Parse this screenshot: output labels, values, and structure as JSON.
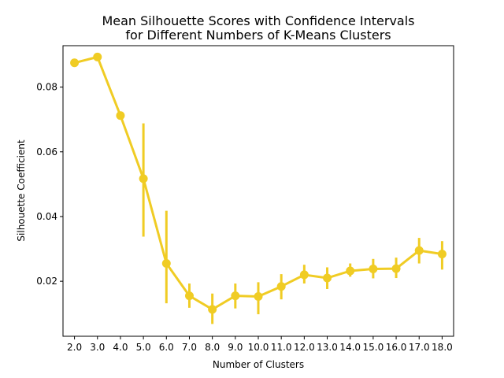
{
  "chart_data": {
    "type": "line",
    "title_line1": "Mean Silhouette Scores with Confidence Intervals",
    "title_line2": "for Different Numbers of K-Means Clusters",
    "xlabel": "Number of Clusters",
    "ylabel": "Silhouette Coefficient",
    "categories": [
      "2.0",
      "3.0",
      "4.0",
      "5.0",
      "6.0",
      "7.0",
      "8.0",
      "9.0",
      "10.0",
      "11.0",
      "12.0",
      "13.0",
      "14.0",
      "15.0",
      "16.0",
      "17.0",
      "18.0"
    ],
    "values": [
      0.0875,
      0.0893,
      0.0712,
      0.0517,
      0.0255,
      0.0155,
      0.0113,
      0.0155,
      0.0153,
      0.0184,
      0.022,
      0.021,
      0.0232,
      0.0238,
      0.0239,
      0.0295,
      0.0284
    ],
    "ci_low": [
      0.0875,
      0.0893,
      0.0712,
      0.0338,
      0.0132,
      0.0118,
      0.0068,
      0.0116,
      0.0098,
      0.0144,
      0.0193,
      0.0176,
      0.0214,
      0.0209,
      0.021,
      0.0255,
      0.0236
    ],
    "ci_high": [
      0.0875,
      0.0893,
      0.0712,
      0.0688,
      0.0418,
      0.0193,
      0.0162,
      0.0193,
      0.0197,
      0.0222,
      0.0251,
      0.0243,
      0.0255,
      0.0269,
      0.0273,
      0.0334,
      0.0324
    ],
    "y_ticks": [
      0.02,
      0.04,
      0.06,
      0.08
    ],
    "y_tick_labels": [
      "0.02",
      "0.04",
      "0.06",
      "0.08"
    ],
    "ylim": [
      0.003,
      0.0928
    ],
    "grid": false,
    "series_color": "#f0cc24"
  }
}
